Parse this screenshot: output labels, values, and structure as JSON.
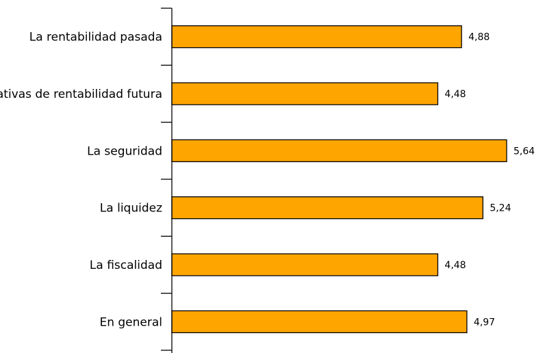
{
  "chart_data": {
    "type": "bar",
    "orientation": "horizontal",
    "title": "",
    "xlabel": "",
    "ylabel": "",
    "categories": [
      "La rentabilidad pasada",
      "Expectativas de rentabilidad futura",
      "La seguridad",
      "La liquidez",
      "La fiscalidad",
      "En general"
    ],
    "values": [
      4.88,
      4.48,
      5.64,
      5.24,
      4.48,
      4.97
    ],
    "value_labels": [
      "4,88",
      "4,48",
      "5,64",
      "5,24",
      "4,48",
      "4,97"
    ],
    "xlim": [
      0,
      6.0
    ],
    "grid": false,
    "legend": "none",
    "bar_color": "#FFA500",
    "bar_edge_color": "#000000"
  }
}
